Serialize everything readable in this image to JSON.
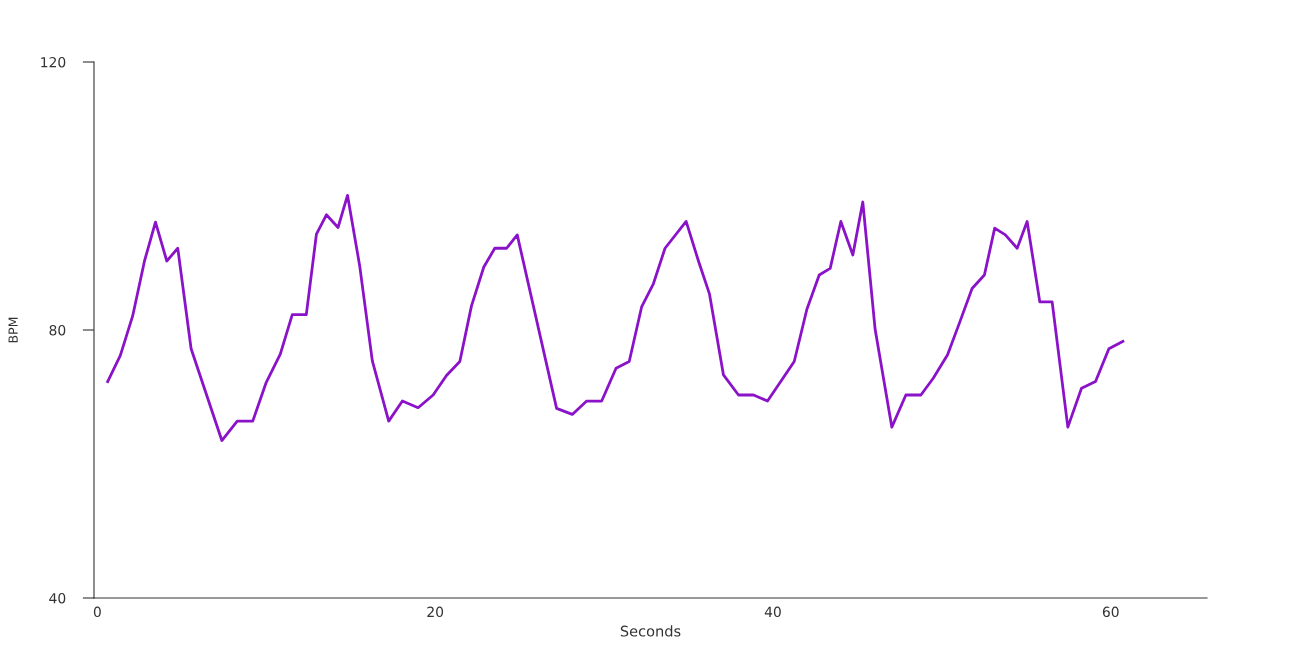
{
  "chart_data": {
    "type": "line",
    "xlabel": "Seconds",
    "ylabel": "BPM",
    "xlim": [
      -0.2,
      65.7
    ],
    "xticks": [
      0,
      20,
      40,
      60
    ],
    "ylim": [
      40,
      120
    ],
    "yticks": [
      40,
      80,
      120
    ],
    "grid": false,
    "marker": "none",
    "line_style": "solid",
    "series": [
      {
        "color": "#8a12c8",
        "x": [
          0.61,
          1.36,
          2.09,
          2.79,
          3.44,
          4.11,
          4.76,
          5.55,
          7.37,
          8.28,
          9.2,
          10.0,
          10.83,
          11.54,
          12.37,
          12.97,
          13.56,
          14.25,
          14.81,
          15.53,
          16.28,
          17.25,
          18.06,
          18.99,
          19.88,
          20.67,
          21.46,
          22.15,
          22.88,
          23.53,
          24.23,
          24.86,
          27.19,
          28.12,
          28.97,
          29.86,
          30.71,
          31.49,
          32.23,
          32.92,
          33.61,
          34.86,
          35.59,
          36.24,
          37.07,
          37.96,
          38.85,
          39.68,
          40.43,
          41.26,
          42.01,
          42.74,
          43.39,
          44.02,
          44.73,
          45.32,
          46.05,
          47.04,
          47.87,
          48.76,
          49.49,
          50.34,
          51.05,
          51.79,
          52.52,
          53.13,
          53.76,
          54.46,
          55.05,
          55.8,
          56.53,
          57.46,
          58.27,
          59.1,
          59.89,
          60.72
        ],
        "values": [
          72.3,
          76.2,
          82.1,
          90.3,
          96.1,
          90.3,
          92.2,
          77.2,
          63.5,
          66.4,
          66.4,
          72.2,
          76.4,
          82.3,
          82.3,
          94.3,
          97.2,
          95.3,
          100.1,
          89.6,
          75.4,
          66.4,
          69.4,
          68.4,
          70.3,
          73.2,
          75.3,
          83.6,
          89.4,
          92.2,
          92.2,
          94.2,
          68.3,
          67.4,
          69.4,
          69.4,
          74.3,
          75.3,
          83.5,
          86.9,
          92.2,
          96.2,
          90.3,
          85.4,
          73.3,
          70.3,
          70.3,
          69.4,
          72.2,
          75.3,
          83.1,
          88.2,
          89.2,
          96.2,
          91.2,
          99.1,
          80.1,
          65.5,
          70.3,
          70.3,
          72.8,
          76.3,
          81.1,
          86.2,
          88.2,
          95.2,
          94.2,
          92.2,
          96.2,
          84.2,
          84.2,
          65.5,
          71.3,
          72.3,
          77.2,
          78.3
        ]
      }
    ]
  }
}
